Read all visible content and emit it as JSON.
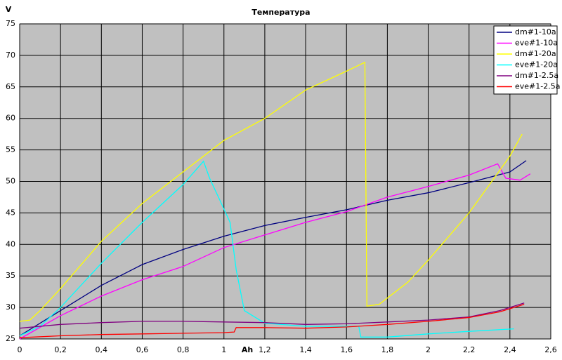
{
  "chart_data": {
    "type": "line",
    "title": "Температура",
    "y_label": "V",
    "x_label": "Ah",
    "xlim": [
      0,
      2.6
    ],
    "ylim": [
      25,
      75
    ],
    "xticks": [
      0,
      {
        "value": 0.2,
        "label": "0,2"
      },
      {
        "value": 0.4,
        "label": "0,4"
      },
      {
        "value": 0.6,
        "label": "0,6"
      },
      {
        "value": 0.8,
        "label": "0,8"
      },
      1,
      {
        "value": 1.2,
        "label": "1,2"
      },
      {
        "value": 1.4,
        "label": "1,4"
      },
      {
        "value": 1.6,
        "label": "1,6"
      },
      {
        "value": 1.8,
        "label": "1,8"
      },
      2,
      {
        "value": 2.2,
        "label": "2,2"
      },
      {
        "value": 2.4,
        "label": "2,4"
      },
      {
        "value": 2.6,
        "label": "2,6"
      }
    ],
    "yticks": [
      25,
      30,
      35,
      40,
      45,
      50,
      55,
      60,
      65,
      70,
      75
    ],
    "grid": true,
    "legend": "upper right",
    "plot_background": "#c0c0c0",
    "series": [
      {
        "name": "dm#1-10a",
        "color": "#000080",
        "x": [
          0,
          0.2,
          0.4,
          0.6,
          0.8,
          1.0,
          1.2,
          1.4,
          1.6,
          1.8,
          2.0,
          2.2,
          2.4,
          2.48
        ],
        "values": [
          25.5,
          29.5,
          33.5,
          36.8,
          39.2,
          41.3,
          43,
          44.3,
          45.5,
          47,
          48.2,
          49.8,
          51.5,
          53.3
        ]
      },
      {
        "name": "eve#1-10a",
        "color": "#ff00ff",
        "x": [
          0,
          0.2,
          0.4,
          0.6,
          0.8,
          1.0,
          1.2,
          1.4,
          1.6,
          1.8,
          2.0,
          2.2,
          2.34,
          2.38,
          2.45,
          2.5
        ],
        "values": [
          25,
          28.7,
          31.8,
          34.4,
          36.5,
          39.5,
          41.5,
          43.5,
          45.2,
          47.5,
          49.2,
          51,
          52.8,
          50.5,
          50.2,
          51.2
        ]
      },
      {
        "name": "dm#1-20a",
        "color": "#ffff00",
        "x": [
          0,
          0.05,
          0.1,
          0.2,
          0.4,
          0.6,
          0.8,
          1.0,
          1.2,
          1.4,
          1.6,
          1.69,
          1.7,
          1.76,
          1.9,
          2.0,
          2.2,
          2.3,
          2.4,
          2.46
        ],
        "values": [
          27.8,
          28,
          29.5,
          33,
          40.5,
          46.5,
          51.5,
          56.5,
          60,
          64.5,
          67.5,
          68.9,
          30.2,
          30.5,
          34,
          37.5,
          45,
          49.5,
          54,
          57.5
        ]
      },
      {
        "name": "eve#1-20a",
        "color": "#00ffff",
        "x": [
          0,
          0.1,
          0.2,
          0.4,
          0.6,
          0.8,
          0.9,
          0.93,
          0.98,
          1.03,
          1.06,
          1.1,
          1.2,
          1.4,
          1.6,
          1.66,
          1.67,
          1.8,
          2.0,
          2.2,
          2.42
        ],
        "values": [
          25.5,
          27,
          30,
          37,
          43.5,
          49.5,
          53.2,
          50.5,
          47,
          43.5,
          36,
          29.5,
          27.5,
          27,
          27,
          27,
          25.3,
          25.3,
          25.8,
          26.2,
          26.6
        ]
      },
      {
        "name": "dm#1-2.5a",
        "color": "#800080",
        "x": [
          0,
          0.2,
          0.4,
          0.6,
          0.8,
          1.0,
          1.2,
          1.4,
          1.6,
          1.8,
          2.0,
          2.2,
          2.35,
          2.47
        ],
        "values": [
          26.7,
          27.3,
          27.6,
          27.8,
          27.8,
          27.7,
          27.6,
          27.3,
          27.4,
          27.7,
          28,
          28.5,
          29.5,
          30.7
        ]
      },
      {
        "name": "eve#1-2.5a",
        "color": "#ff0000",
        "x": [
          0,
          0.2,
          0.4,
          0.6,
          0.8,
          1.0,
          1.05,
          1.06,
          1.2,
          1.4,
          1.6,
          1.8,
          2.0,
          2.2,
          2.35,
          2.47
        ],
        "values": [
          25.2,
          25.5,
          25.7,
          25.8,
          25.9,
          26.0,
          26.1,
          26.8,
          26.8,
          26.7,
          26.9,
          27.3,
          27.8,
          28.4,
          29.3,
          30.5
        ]
      }
    ]
  }
}
